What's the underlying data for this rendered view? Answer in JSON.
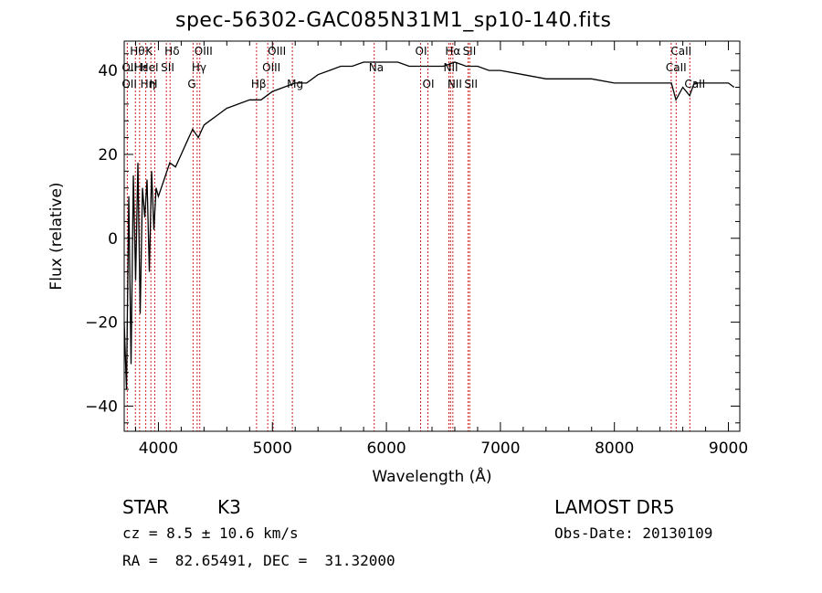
{
  "chart_data": {
    "type": "line",
    "title": "spec-56302-GAC085N31M1_sp10-140.fits",
    "xlabel": "Wavelength (Å)",
    "ylabel": "Flux (relative)",
    "xlim": [
      3700,
      9100
    ],
    "ylim": [
      -46,
      47
    ],
    "x_ticks": [
      4000,
      5000,
      6000,
      7000,
      8000,
      9000
    ],
    "y_ticks": [
      -40,
      -20,
      0,
      20,
      40
    ],
    "grid": false,
    "series": [
      {
        "x": [
          3700,
          3720,
          3740,
          3760,
          3780,
          3800,
          3820,
          3840,
          3860,
          3880,
          3900,
          3920,
          3940,
          3960,
          3980,
          4000,
          4050,
          4100,
          4150,
          4200,
          4250,
          4300,
          4350,
          4400,
          4450,
          4500,
          4600,
          4700,
          4800,
          4900,
          5000,
          5100,
          5200,
          5300,
          5400,
          5500,
          5600,
          5700,
          5800,
          5900,
          6000,
          6100,
          6200,
          6300,
          6400,
          6500,
          6600,
          6700,
          6800,
          6900,
          7000,
          7200,
          7400,
          7600,
          7800,
          8000,
          8200,
          8400,
          8500,
          8540,
          8600,
          8660,
          8700,
          8800,
          8900,
          9000,
          9050
        ],
        "y": [
          -20,
          -36,
          10,
          -30,
          15,
          -10,
          18,
          -18,
          12,
          5,
          14,
          -8,
          16,
          2,
          12,
          10,
          14,
          18,
          17,
          20,
          23,
          26,
          24,
          27,
          28,
          29,
          31,
          32,
          33,
          33,
          35,
          36,
          37,
          37,
          39,
          40,
          41,
          41,
          42,
          42,
          42,
          42,
          41,
          41,
          41,
          41,
          42,
          41,
          41,
          40,
          40,
          39,
          38,
          38,
          38,
          37,
          37,
          37,
          37,
          33,
          36,
          34,
          37,
          37,
          37,
          37,
          36
        ]
      }
    ],
    "annotations": [
      {
        "label": "Hθ",
        "row": 1,
        "x": 3798
      },
      {
        "label": "K",
        "row": 1,
        "x": 3934
      },
      {
        "label": "Hδ",
        "row": 1,
        "x": 4102
      },
      {
        "label": "OIII",
        "row": 1,
        "x": 4363
      },
      {
        "label": "OIII",
        "row": 1,
        "x": 5007
      },
      {
        "label": "OI",
        "row": 1,
        "x": 6300
      },
      {
        "label": "Hα",
        "row": 1,
        "x": 6563
      },
      {
        "label": "SII",
        "row": 1,
        "x": 6717
      },
      {
        "label": "CaII",
        "row": 1,
        "x": 8542
      },
      {
        "label": "OII",
        "row": 2,
        "x": 3727
      },
      {
        "label": "Hε",
        "row": 2,
        "x": 3835
      },
      {
        "label": "HeI",
        "row": 2,
        "x": 3889
      },
      {
        "label": "SII",
        "row": 2,
        "x": 4070
      },
      {
        "label": "Hγ",
        "row": 2,
        "x": 4340
      },
      {
        "label": "OIII",
        "row": 2,
        "x": 4959
      },
      {
        "label": "Na",
        "row": 2,
        "x": 5893
      },
      {
        "label": "NII",
        "row": 2,
        "x": 6548
      },
      {
        "label": "CaII",
        "row": 2,
        "x": 8498
      },
      {
        "label": "OII",
        "row": 3,
        "x": 3727
      },
      {
        "label": "Hη",
        "row": 3,
        "x": 3889
      },
      {
        "label": "H",
        "row": 3,
        "x": 3968
      },
      {
        "label": "G",
        "row": 3,
        "x": 4304
      },
      {
        "label": "Hβ",
        "row": 3,
        "x": 4861
      },
      {
        "label": "Mg",
        "row": 3,
        "x": 5175
      },
      {
        "label": "OI",
        "row": 3,
        "x": 6364
      },
      {
        "label": "NII",
        "row": 3,
        "x": 6583
      },
      {
        "label": "SII",
        "row": 3,
        "x": 6731
      },
      {
        "label": "CaII",
        "row": 3,
        "x": 8662
      }
    ],
    "line_markers": [
      3727,
      3798,
      3835,
      3889,
      3934,
      3968,
      4070,
      4102,
      4304,
      4340,
      4363,
      4861,
      4959,
      5007,
      5175,
      5893,
      6300,
      6364,
      6548,
      6563,
      6583,
      6717,
      6731,
      8498,
      8542,
      8662
    ],
    "colors": {
      "spectrum": "#000000",
      "markers": "#cc2020"
    }
  },
  "info": {
    "object_class": "STAR",
    "subclass": "K3",
    "cz": "cz = 8.5 ± 10.6 km/s",
    "coords": "RA =  82.65491, DEC =  31.32000",
    "survey": "LAMOST DR5",
    "obs_date": "Obs-Date: 20130109"
  }
}
